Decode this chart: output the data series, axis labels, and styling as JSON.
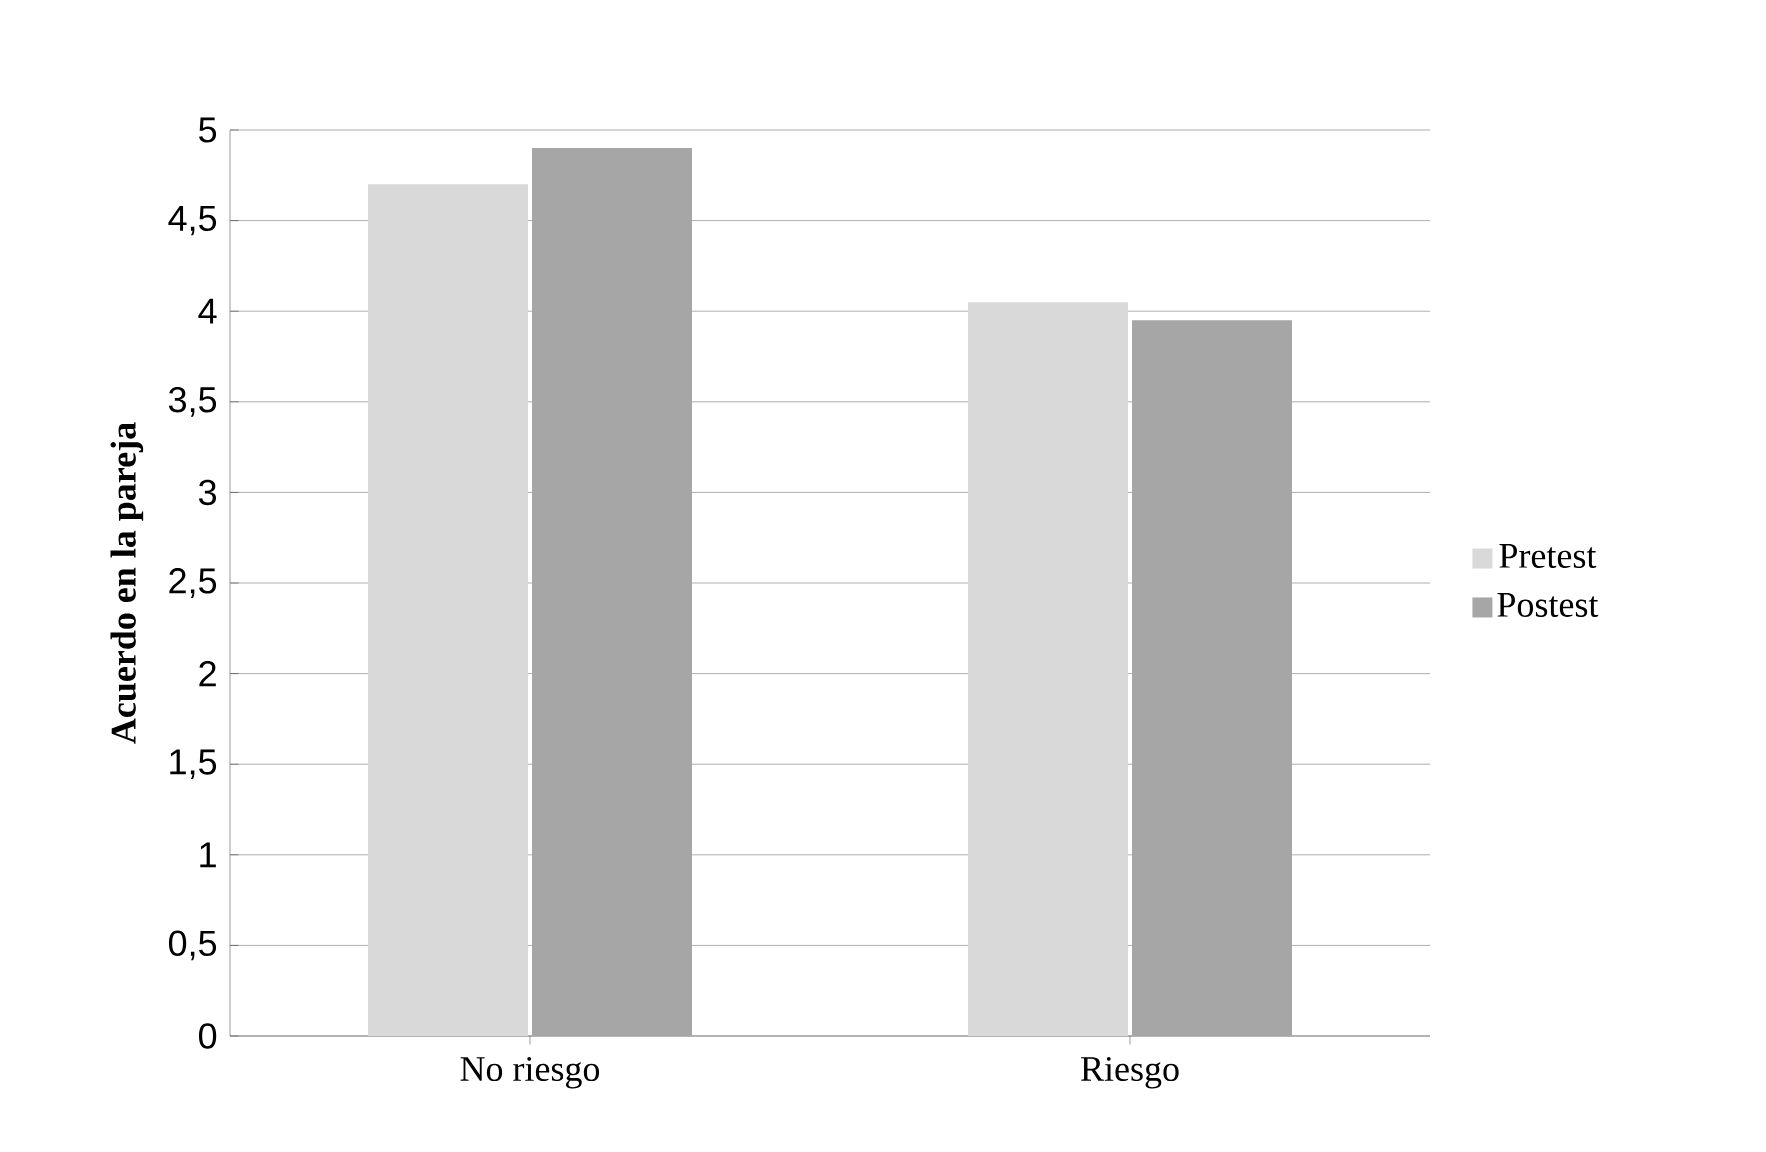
{
  "chart_data": {
    "type": "bar",
    "ylabel": "Acuerdo en la pareja",
    "categories": [
      "No riesgo",
      "Riesgo"
    ],
    "series": [
      {
        "name": "Pretest",
        "color": "#d9d9d9",
        "values": [
          4.7,
          4.05
        ]
      },
      {
        "name": "Postest",
        "color": "#a6a6a6",
        "values": [
          4.9,
          3.95
        ]
      }
    ],
    "ylim": [
      0,
      5
    ],
    "yticks": [
      0,
      {
        "value": 0.5,
        "label": "0,5"
      },
      1,
      {
        "value": 1.5,
        "label": "1,5"
      },
      2,
      {
        "value": 2.5,
        "label": "2,5"
      },
      3,
      {
        "value": 3.5,
        "label": "3,5"
      },
      4,
      {
        "value": 4.5,
        "label": "4,5"
      },
      5
    ],
    "grid": "y",
    "legend": "right"
  }
}
